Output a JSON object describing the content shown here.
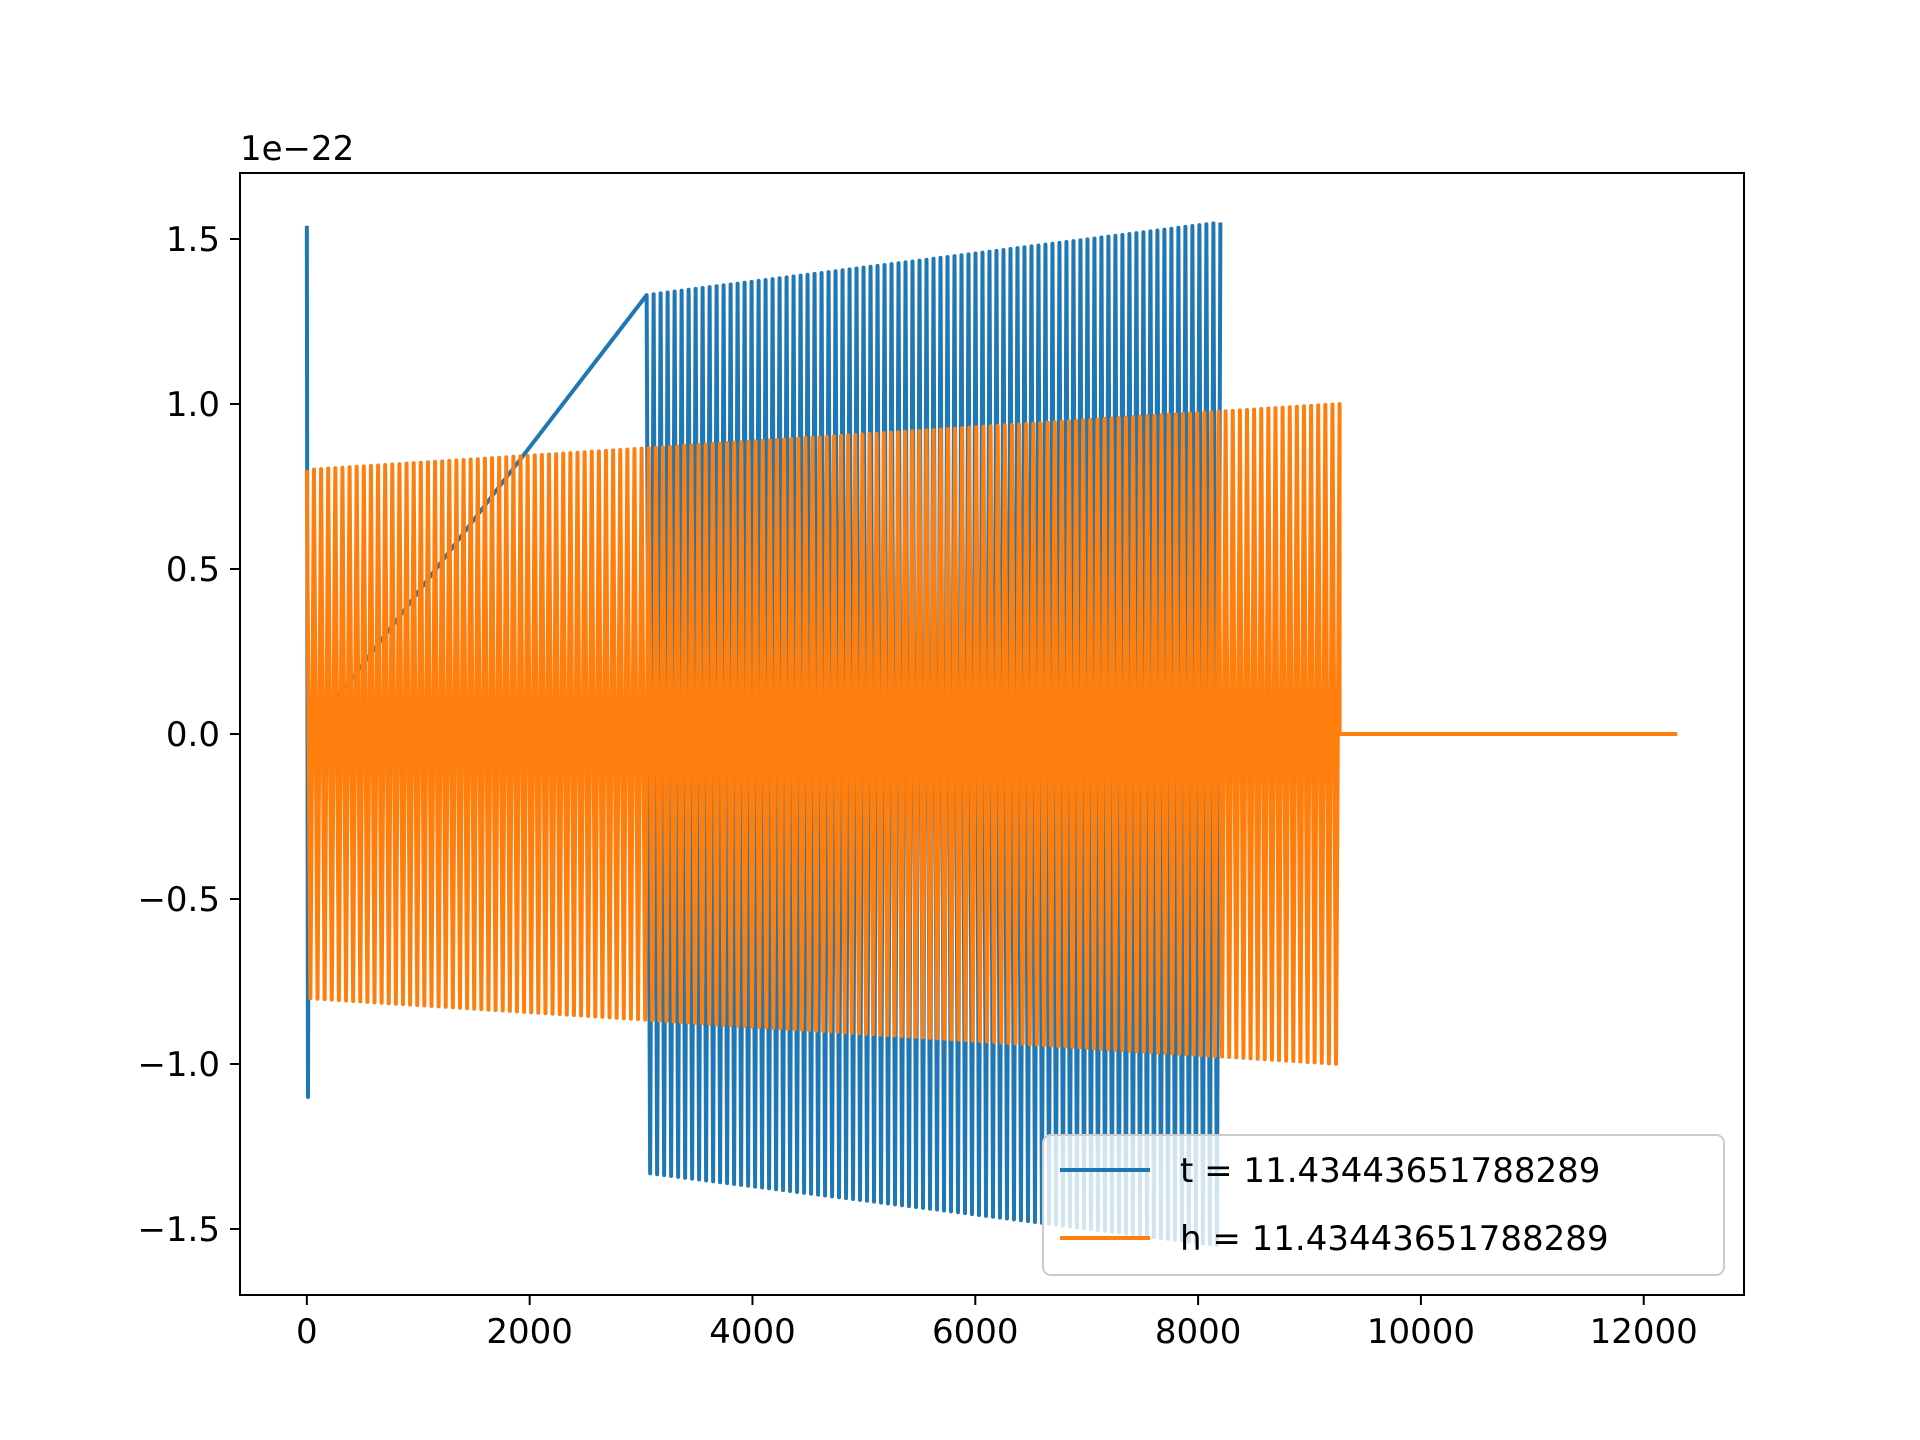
{
  "chart_data": {
    "type": "line",
    "title": "",
    "xlabel": "",
    "ylabel": "",
    "offset_text": "1e−22",
    "xlim": [
      -600,
      12900
    ],
    "ylim": [
      -1.7,
      1.7
    ],
    "x_ticks": [
      0,
      2000,
      4000,
      6000,
      8000,
      10000,
      12000
    ],
    "x_tick_labels": [
      "0",
      "2000",
      "4000",
      "6000",
      "8000",
      "10000",
      "12000"
    ],
    "y_ticks": [
      -1.5,
      -1.0,
      -0.5,
      0.0,
      0.5,
      1.0,
      1.5
    ],
    "y_tick_labels": [
      "−1.5",
      "−1.0",
      "−0.5",
      "0.0",
      "0.5",
      "1.0",
      "1.5"
    ],
    "grid": false,
    "legend_position": "lower right",
    "series": [
      {
        "name": "t = 11.43443651788289",
        "color": "#1f77b4",
        "segments": [
          {
            "x_start": 0,
            "x_end": 20,
            "spike_max": 1.54,
            "spike_min": -1.1
          },
          {
            "x_start": 3050,
            "x_end": 8200,
            "amp_start": 1.33,
            "amp_end": 1.55,
            "cycles": 82
          }
        ]
      },
      {
        "name": "h = 11.43443651788289",
        "color": "#ff7f0e",
        "segments": [
          {
            "x_start": 0,
            "x_end": 9270,
            "amp_start": 0.8,
            "amp_end": 1.0,
            "cycles": 145
          },
          {
            "x_start": 9270,
            "x_end": 12300,
            "constant": 0.0
          }
        ]
      }
    ]
  }
}
